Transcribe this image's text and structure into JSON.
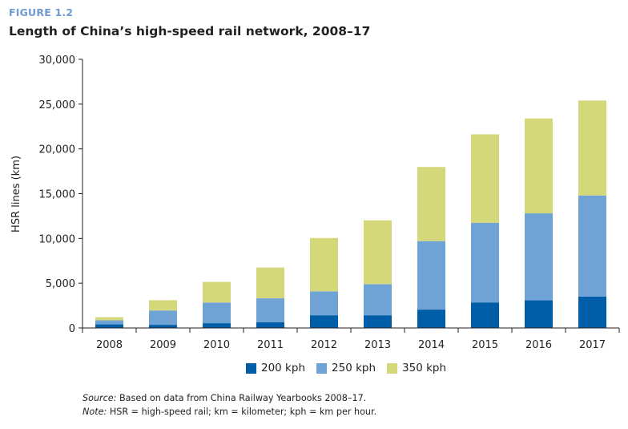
{
  "figure_label": "FIGURE 1.2",
  "title": "Length of China’s high-speed rail network, 2008–17",
  "source_label": "Source:",
  "source_text": " Based on data from China Railway Yearbooks 2008–17.",
  "note_label": "Note:",
  "note_text": " HSR = high-speed rail; km = kilometer; kph = km per hour.",
  "chart_data": {
    "type": "bar",
    "stacked": true,
    "title": "Length of China’s high-speed rail network, 2008–17",
    "xlabel": "",
    "ylabel": "HSR lines (km)",
    "ylim": [
      0,
      30000
    ],
    "yticks": [
      0,
      5000,
      10000,
      15000,
      20000,
      25000,
      30000
    ],
    "ytick_labels": [
      "0",
      "5,000",
      "10,000",
      "15,000",
      "20,000",
      "25,000",
      "30,000"
    ],
    "grid": false,
    "legend_position": "bottom",
    "categories": [
      "2008",
      "2009",
      "2010",
      "2011",
      "2012",
      "2013",
      "2014",
      "2015",
      "2016",
      "2017"
    ],
    "series": [
      {
        "name": "200 kph",
        "color": "#005ea8",
        "values": [
          400,
          350,
          530,
          650,
          1420,
          1420,
          2050,
          2850,
          3100,
          3500
        ]
      },
      {
        "name": "250 kph",
        "color": "#6fa3d5",
        "values": [
          450,
          1600,
          2310,
          2660,
          2670,
          3470,
          7650,
          8900,
          9700,
          11300
        ]
      },
      {
        "name": "350 kph",
        "color": "#d4d87a",
        "values": [
          350,
          1150,
          2310,
          3440,
          5960,
          7120,
          8280,
          9880,
          10600,
          10600
        ]
      }
    ]
  }
}
